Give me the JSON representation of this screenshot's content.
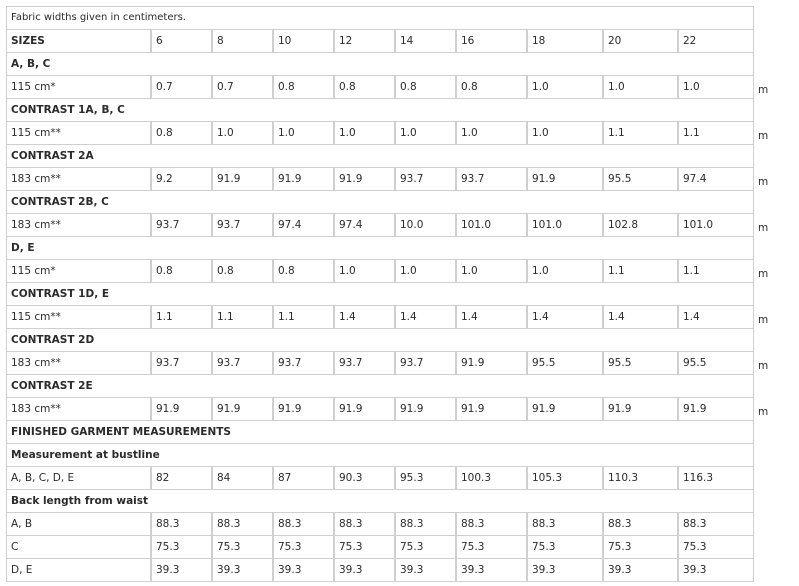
{
  "note": "Fabric widths given in centimeters.",
  "header": {
    "label": "SIZES",
    "sizes": [
      "6",
      "8",
      "10",
      "12",
      "14",
      "16",
      "18",
      "20",
      "22"
    ]
  },
  "sections": [
    {
      "title": "A, B, C",
      "rows": [
        {
          "label": "115 cm*",
          "values": [
            "0.7",
            "0.7",
            "0.8",
            "0.8",
            "0.8",
            "0.8",
            "1.0",
            "1.0",
            "1.0"
          ],
          "unit": "m"
        }
      ]
    },
    {
      "title": "CONTRAST 1A, B, C",
      "rows": [
        {
          "label": "115 cm**",
          "values": [
            "0.8",
            "1.0",
            "1.0",
            "1.0",
            "1.0",
            "1.0",
            "1.0",
            "1.1",
            "1.1"
          ],
          "unit": "m"
        }
      ]
    },
    {
      "title": "CONTRAST 2A",
      "rows": [
        {
          "label": "183 cm**",
          "values": [
            "9.2",
            "91.9",
            "91.9",
            "91.9",
            "93.7",
            "93.7",
            "91.9",
            "95.5",
            "97.4"
          ],
          "unit": "m"
        }
      ]
    },
    {
      "title": "CONTRAST 2B, C",
      "rows": [
        {
          "label": "183 cm**",
          "values": [
            "93.7",
            "93.7",
            "97.4",
            "97.4",
            "10.0",
            "101.0",
            "101.0",
            "102.8",
            "101.0"
          ],
          "unit": "m"
        }
      ]
    },
    {
      "title": "D, E",
      "rows": [
        {
          "label": "115 cm*",
          "values": [
            "0.8",
            "0.8",
            "0.8",
            "1.0",
            "1.0",
            "1.0",
            "1.0",
            "1.1",
            "1.1"
          ],
          "unit": "m"
        }
      ]
    },
    {
      "title": "CONTRAST 1D, E",
      "rows": [
        {
          "label": "115 cm**",
          "values": [
            "1.1",
            "1.1",
            "1.1",
            "1.4",
            "1.4",
            "1.4",
            "1.4",
            "1.4",
            "1.4"
          ],
          "unit": "m"
        }
      ]
    },
    {
      "title": "CONTRAST 2D",
      "rows": [
        {
          "label": "183 cm**",
          "values": [
            "93.7",
            "93.7",
            "93.7",
            "93.7",
            "93.7",
            "91.9",
            "95.5",
            "95.5",
            "95.5"
          ],
          "unit": "m"
        }
      ]
    },
    {
      "title": "CONTRAST 2E",
      "rows": [
        {
          "label": "183 cm**",
          "values": [
            "91.9",
            "91.9",
            "91.9",
            "91.9",
            "91.9",
            "91.9",
            "91.9",
            "91.9",
            "91.9"
          ],
          "unit": "m"
        }
      ]
    },
    {
      "title": "FINISHED GARMENT MEASUREMENTS",
      "rows": []
    },
    {
      "title": "Measurement at bustline",
      "rows": [
        {
          "label": "A, B, C, D, E",
          "values": [
            "82",
            "84",
            "87",
            "90.3",
            "95.3",
            "100.3",
            "105.3",
            "110.3",
            "116.3"
          ],
          "unit": ""
        }
      ]
    },
    {
      "title": "Back length from waist",
      "rows": [
        {
          "label": "A, B",
          "values": [
            "88.3",
            "88.3",
            "88.3",
            "88.3",
            "88.3",
            "88.3",
            "88.3",
            "88.3",
            "88.3"
          ],
          "unit": ""
        },
        {
          "label": "C",
          "values": [
            "75.3",
            "75.3",
            "75.3",
            "75.3",
            "75.3",
            "75.3",
            "75.3",
            "75.3",
            "75.3"
          ],
          "unit": ""
        },
        {
          "label": "D, E",
          "values": [
            "39.3",
            "39.3",
            "39.3",
            "39.3",
            "39.3",
            "39.3",
            "39.3",
            "39.3",
            "39.3"
          ],
          "unit": ""
        }
      ]
    }
  ]
}
